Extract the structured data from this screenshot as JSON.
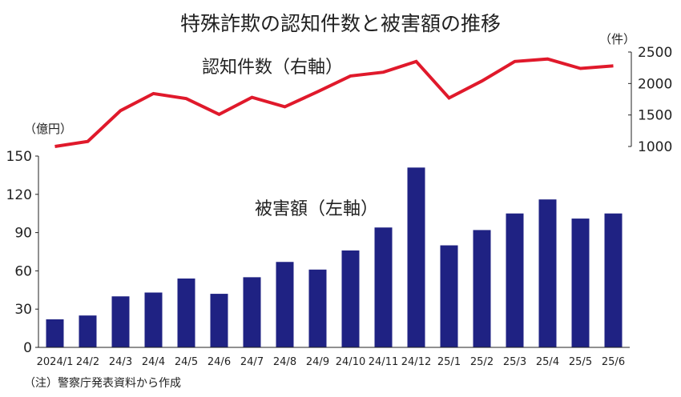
{
  "chart_data": {
    "type": "bar",
    "title": "特殊詐欺の認知件数と被害額の推移",
    "categories": [
      "2024/1",
      "24/2",
      "24/3",
      "24/4",
      "24/5",
      "24/6",
      "24/7",
      "24/8",
      "24/9",
      "24/10",
      "24/11",
      "24/12",
      "25/1",
      "25/2",
      "25/3",
      "25/4",
      "25/5",
      "25/6"
    ],
    "series": [
      {
        "name": "被害額（左軸）",
        "type": "bar",
        "axis": "left",
        "color": "#1f2283",
        "values": [
          22,
          25,
          40,
          43,
          54,
          42,
          55,
          67,
          61,
          76,
          94,
          141,
          80,
          92,
          105,
          116,
          101,
          105
        ]
      },
      {
        "name": "認知件数（右軸）",
        "type": "line",
        "axis": "right",
        "color": "#e0192b",
        "values": [
          1000,
          1080,
          1570,
          1840,
          1760,
          1510,
          1780,
          1630,
          1870,
          2120,
          2180,
          2350,
          1770,
          2040,
          2350,
          2390,
          2240,
          2280
        ]
      }
    ],
    "left_axis": {
      "unit": "（億円）",
      "range": [
        0,
        150
      ],
      "ticks": [
        "0",
        "30",
        "60",
        "90",
        "120",
        "150"
      ]
    },
    "right_axis": {
      "unit": "（件）",
      "range": [
        1000,
        2500
      ],
      "ticks": [
        "1000",
        "1500",
        "2000",
        "2500"
      ]
    },
    "note": "（注）警察庁発表資料から作成"
  }
}
